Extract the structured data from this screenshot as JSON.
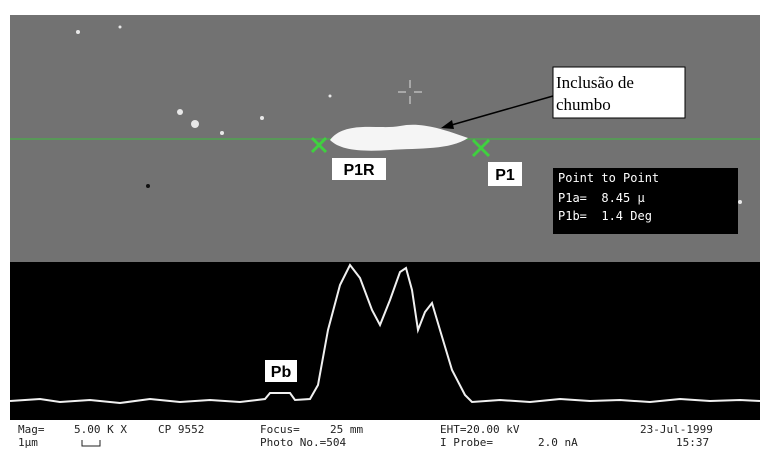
{
  "overlay": {
    "callout": [
      "Inclusão de",
      "chumbo"
    ],
    "markers": {
      "left": "P1R",
      "right": "P1"
    },
    "measurement": {
      "title": "Point to Point",
      "lines": [
        "P1a=  8.45 µ",
        "P1b=  1.4 Deg"
      ]
    }
  },
  "spectrum": {
    "peak_label": "Pb"
  },
  "status_bar": {
    "mag": [
      "Mag=",
      "5.00 K X",
      "CP 9552"
    ],
    "scale": "1µm",
    "focus": [
      "Focus=",
      "25 mm"
    ],
    "photo": "Photo No.=504",
    "eht": "EHT=20.00 kV",
    "probe": [
      "I Probe=",
      "2.0 nA"
    ],
    "date": "23-Jul-1999",
    "time": "15:37"
  }
}
